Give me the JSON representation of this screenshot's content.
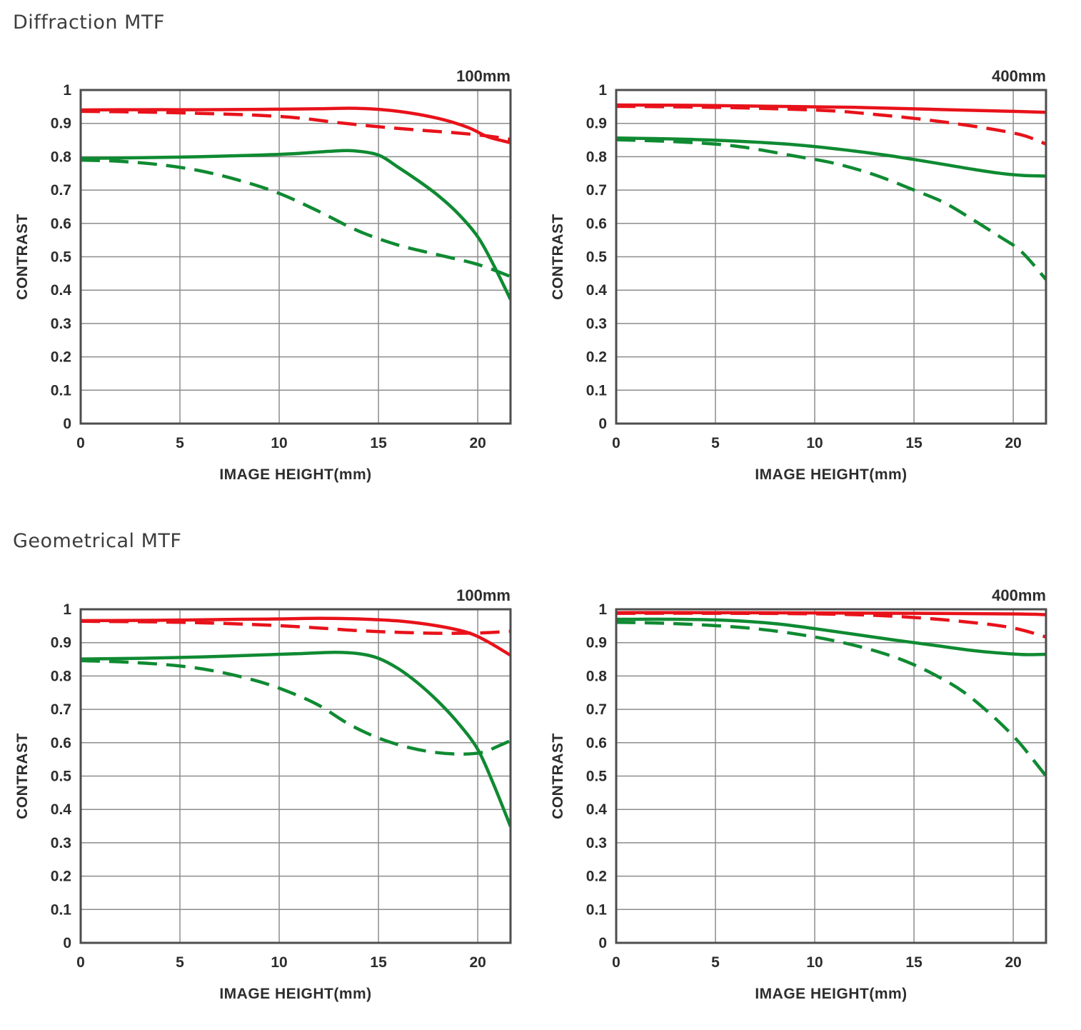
{
  "sections": [
    {
      "title": "Diffraction MTF"
    },
    {
      "title": "Geometrical MTF"
    }
  ],
  "colors": {
    "red": "#e8121a",
    "green": "#0f8a32",
    "grid": "#8c8c8c",
    "frame": "#4d4d4d",
    "text": "#2d2d2d",
    "title": "#3d3d3d"
  },
  "axis": {
    "xlabel": "IMAGE HEIGHT(mm)",
    "ylabel": "CONTRAST",
    "xticks": {
      "values": [
        0,
        5,
        10,
        15,
        20
      ],
      "labels": [
        "0",
        "5",
        "10",
        "15",
        "20"
      ]
    },
    "yticks": {
      "values": [
        1,
        0.9,
        0.8,
        0.7,
        0.6,
        0.5,
        0.4,
        0.3,
        0.2,
        0.1,
        0
      ],
      "labels": [
        "1",
        "0.9",
        "0.8",
        "0.7",
        "0.6",
        "0.5",
        "0.4",
        "0.3",
        "0.2",
        "0.1",
        "0"
      ]
    }
  },
  "chart_data": [
    {
      "type": "line",
      "section": "Diffraction MTF",
      "title": "100mm",
      "xlabel": "IMAGE HEIGHT(mm)",
      "ylabel": "CONTRAST",
      "xlim": [
        0,
        21.65
      ],
      "ylim": [
        0,
        1
      ],
      "grid": true,
      "legend": "none",
      "series": [
        {
          "name": "red-dashed",
          "color": "red",
          "dash": "dashed",
          "x": [
            0,
            3,
            6,
            9,
            11,
            13,
            15,
            17,
            19,
            20.5,
            21.65
          ],
          "y": [
            0.936,
            0.934,
            0.93,
            0.924,
            0.916,
            0.902,
            0.89,
            0.88,
            0.871,
            0.862,
            0.852
          ]
        },
        {
          "name": "red-solid",
          "color": "red",
          "dash": "solid",
          "x": [
            0,
            3,
            6,
            9,
            12,
            14,
            16,
            18,
            19.5,
            20.5,
            21.65
          ],
          "y": [
            0.94,
            0.941,
            0.941,
            0.942,
            0.944,
            0.945,
            0.936,
            0.915,
            0.888,
            0.86,
            0.842
          ]
        },
        {
          "name": "green-dashed",
          "color": "green",
          "dash": "dashed",
          "x": [
            0,
            2,
            4,
            6,
            8,
            10,
            12,
            14,
            16,
            18,
            20,
            21.65
          ],
          "y": [
            0.79,
            0.786,
            0.776,
            0.758,
            0.729,
            0.69,
            0.636,
            0.577,
            0.535,
            0.506,
            0.477,
            0.441
          ]
        },
        {
          "name": "green-solid",
          "color": "green",
          "dash": "solid",
          "x": [
            0,
            3,
            6,
            9,
            11,
            12.5,
            13.7,
            15,
            16,
            17,
            18,
            19,
            20,
            20.8,
            21.65
          ],
          "y": [
            0.795,
            0.797,
            0.8,
            0.805,
            0.81,
            0.816,
            0.818,
            0.805,
            0.768,
            0.728,
            0.684,
            0.63,
            0.56,
            0.475,
            0.372
          ]
        }
      ]
    },
    {
      "type": "line",
      "section": "Diffraction MTF",
      "title": "400mm",
      "xlabel": "IMAGE HEIGHT(mm)",
      "ylabel": "CONTRAST",
      "xlim": [
        0,
        21.65
      ],
      "ylim": [
        0,
        1
      ],
      "grid": true,
      "legend": "none",
      "series": [
        {
          "name": "red-dashed",
          "color": "red",
          "dash": "dashed",
          "x": [
            0,
            4,
            8,
            11,
            13,
            15,
            17,
            19,
            20.5,
            21.65
          ],
          "y": [
            0.951,
            0.949,
            0.944,
            0.937,
            0.927,
            0.915,
            0.9,
            0.882,
            0.864,
            0.838
          ]
        },
        {
          "name": "red-solid",
          "color": "red",
          "dash": "solid",
          "x": [
            0,
            4,
            8,
            12,
            16,
            20,
            21.65
          ],
          "y": [
            0.955,
            0.954,
            0.951,
            0.948,
            0.942,
            0.936,
            0.933
          ]
        },
        {
          "name": "green-dashed",
          "color": "green",
          "dash": "dashed",
          "x": [
            0,
            3,
            6,
            9,
            11,
            13,
            15,
            16.5,
            18,
            19.3,
            20.4,
            21.65
          ],
          "y": [
            0.851,
            0.845,
            0.832,
            0.802,
            0.78,
            0.746,
            0.7,
            0.663,
            0.61,
            0.561,
            0.516,
            0.432
          ]
        },
        {
          "name": "green-solid",
          "color": "green",
          "dash": "solid",
          "x": [
            0,
            3,
            6,
            9,
            12,
            14,
            16,
            18,
            19.5,
            20.5,
            21.65
          ],
          "y": [
            0.856,
            0.853,
            0.847,
            0.836,
            0.817,
            0.801,
            0.782,
            0.762,
            0.749,
            0.744,
            0.742
          ]
        }
      ]
    },
    {
      "type": "line",
      "section": "Geometrical MTF",
      "title": "100mm",
      "xlabel": "IMAGE HEIGHT(mm)",
      "ylabel": "CONTRAST",
      "xlim": [
        0,
        21.65
      ],
      "ylim": [
        0,
        1
      ],
      "grid": true,
      "legend": "none",
      "series": [
        {
          "name": "red-dashed",
          "color": "red",
          "dash": "dashed",
          "x": [
            0,
            4,
            7,
            10,
            12,
            14,
            16,
            18,
            20,
            21.65
          ],
          "y": [
            0.964,
            0.962,
            0.958,
            0.951,
            0.944,
            0.936,
            0.931,
            0.928,
            0.929,
            0.934
          ]
        },
        {
          "name": "red-solid",
          "color": "red",
          "dash": "solid",
          "x": [
            0,
            4,
            8,
            10,
            12,
            14,
            16,
            18,
            19.5,
            20.5,
            21.65
          ],
          "y": [
            0.966,
            0.967,
            0.97,
            0.971,
            0.973,
            0.971,
            0.965,
            0.95,
            0.93,
            0.903,
            0.862
          ]
        },
        {
          "name": "green-dashed",
          "color": "green",
          "dash": "dashed",
          "x": [
            0,
            2.5,
            5,
            7,
            9,
            10.5,
            12,
            13.5,
            15,
            16.5,
            18,
            19.3,
            20.3,
            21,
            21.65
          ],
          "y": [
            0.846,
            0.841,
            0.83,
            0.812,
            0.783,
            0.752,
            0.712,
            0.656,
            0.614,
            0.586,
            0.57,
            0.566,
            0.572,
            0.589,
            0.606
          ]
        },
        {
          "name": "green-solid",
          "color": "green",
          "dash": "solid",
          "x": [
            0,
            3,
            6,
            9,
            11,
            12.8,
            14,
            15,
            16,
            17,
            18,
            19,
            20,
            20.8,
            21.65
          ],
          "y": [
            0.851,
            0.853,
            0.857,
            0.863,
            0.867,
            0.871,
            0.867,
            0.853,
            0.822,
            0.778,
            0.724,
            0.66,
            0.58,
            0.475,
            0.349
          ]
        }
      ]
    },
    {
      "type": "line",
      "section": "Geometrical MTF",
      "title": "400mm",
      "xlabel": "IMAGE HEIGHT(mm)",
      "ylabel": "CONTRAST",
      "xlim": [
        0,
        21.65
      ],
      "ylim": [
        0,
        1
      ],
      "grid": true,
      "legend": "none",
      "series": [
        {
          "name": "red-dashed",
          "color": "red",
          "dash": "dashed",
          "x": [
            0,
            5,
            9,
            12,
            14,
            16,
            18,
            19.5,
            20.5,
            21.65
          ],
          "y": [
            0.988,
            0.988,
            0.987,
            0.984,
            0.979,
            0.971,
            0.96,
            0.949,
            0.937,
            0.917
          ]
        },
        {
          "name": "red-solid",
          "color": "red",
          "dash": "solid",
          "x": [
            0,
            5,
            10,
            15,
            20,
            21.65
          ],
          "y": [
            0.99,
            0.99,
            0.989,
            0.988,
            0.986,
            0.984
          ]
        },
        {
          "name": "green-dashed",
          "color": "green",
          "dash": "dashed",
          "x": [
            0,
            3,
            6,
            8,
            10,
            11.5,
            13,
            14.5,
            16,
            17.5,
            19,
            20.2,
            21,
            21.65
          ],
          "y": [
            0.961,
            0.957,
            0.947,
            0.935,
            0.917,
            0.899,
            0.876,
            0.846,
            0.805,
            0.752,
            0.678,
            0.607,
            0.549,
            0.5
          ]
        },
        {
          "name": "green-solid",
          "color": "green",
          "dash": "solid",
          "x": [
            0,
            3,
            5.5,
            8,
            10,
            12,
            14,
            16,
            18,
            19.5,
            20.7,
            21.65
          ],
          "y": [
            0.97,
            0.97,
            0.967,
            0.957,
            0.942,
            0.925,
            0.908,
            0.892,
            0.876,
            0.868,
            0.864,
            0.865
          ]
        }
      ]
    }
  ]
}
